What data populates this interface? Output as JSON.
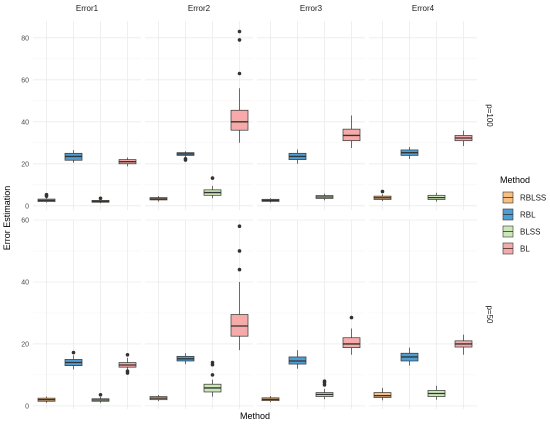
{
  "chart_data": {
    "type": "boxplot",
    "xlabel": "Method",
    "ylabel": "Error Estimation",
    "columns": [
      "Error1",
      "Error2",
      "Error3",
      "Error4"
    ],
    "rows": [
      "p=100",
      "p=50"
    ],
    "methods": [
      "RBLSS",
      "RBL",
      "BLSS",
      "BL"
    ],
    "colors": {
      "RBLSS": "#F8BF83",
      "RBL": "#4C9FD6",
      "BLSS": "#CDE8B8",
      "BL": "#F7AAAA"
    },
    "legend": {
      "title": "Method",
      "placement": "right",
      "entries": [
        "RBLSS",
        "RBL",
        "BLSS",
        "BL"
      ]
    },
    "grid": true,
    "rows_ylim": {
      "p=100": [
        -2,
        88
      ],
      "p=50": [
        -1,
        60
      ]
    },
    "rows_yticks": {
      "p=100": [
        0,
        20,
        40,
        60,
        80
      ],
      "p=50": [
        0,
        20,
        40,
        60
      ]
    },
    "panels": [
      {
        "row": "p=100",
        "col": "Error1",
        "boxes": [
          {
            "method": "RBLSS",
            "q1": 2.0,
            "median": 2.6,
            "q3": 3.2,
            "whisker_low": 1.5,
            "whisker_high": 3.8,
            "outliers": [
              4.6,
              5.3
            ]
          },
          {
            "method": "RBL",
            "q1": 21.7,
            "median": 23.5,
            "q3": 25.0,
            "whisker_low": 20.5,
            "whisker_high": 26.5,
            "outliers": []
          },
          {
            "method": "BLSS",
            "q1": 1.7,
            "median": 2.1,
            "q3": 2.6,
            "whisker_low": 1.3,
            "whisker_high": 3.0,
            "outliers": [
              3.6
            ]
          },
          {
            "method": "BL",
            "q1": 20.0,
            "median": 21.0,
            "q3": 22.0,
            "whisker_low": 18.8,
            "whisker_high": 23.0,
            "outliers": []
          }
        ]
      },
      {
        "row": "p=100",
        "col": "Error2",
        "boxes": [
          {
            "method": "RBL",
            "q1": 24.0,
            "median": 24.7,
            "q3": 25.3,
            "whisker_low": 23.0,
            "whisker_high": 26.0,
            "outliers": [
              21.8,
              22.4
            ]
          },
          {
            "method": "RBLSS",
            "q1": 2.8,
            "median": 3.3,
            "q3": 3.9,
            "whisker_low": 2.0,
            "whisker_high": 4.6,
            "outliers": []
          },
          {
            "method": "BLSS",
            "q1": 5.0,
            "median": 6.3,
            "q3": 7.6,
            "whisker_low": 3.6,
            "whisker_high": 9.5,
            "outliers": [
              13.2
            ]
          },
          {
            "method": "BL",
            "q1": 36.0,
            "median": 40.0,
            "q3": 45.5,
            "whisker_low": 30.0,
            "whisker_high": 56.0,
            "outliers": [
              63.0,
              79.0,
              83.0
            ]
          }
        ]
      },
      {
        "row": "p=100",
        "col": "Error3",
        "boxes": [
          {
            "method": "RBLSS",
            "q1": 2.1,
            "median": 2.6,
            "q3": 3.1,
            "whisker_low": 1.6,
            "whisker_high": 3.6,
            "outliers": []
          },
          {
            "method": "RBL",
            "q1": 22.0,
            "median": 23.5,
            "q3": 25.0,
            "whisker_low": 20.0,
            "whisker_high": 26.8,
            "outliers": []
          },
          {
            "method": "BLSS",
            "q1": 3.5,
            "median": 4.2,
            "q3": 4.9,
            "whisker_low": 2.6,
            "whisker_high": 5.8,
            "outliers": []
          },
          {
            "method": "BL",
            "q1": 31.0,
            "median": 33.5,
            "q3": 36.5,
            "whisker_low": 27.5,
            "whisker_high": 43.0,
            "outliers": []
          }
        ]
      },
      {
        "row": "p=100",
        "col": "Error4",
        "boxes": [
          {
            "method": "RBLSS",
            "q1": 3.0,
            "median": 3.8,
            "q3": 4.6,
            "whisker_low": 2.2,
            "whisker_high": 5.5,
            "outliers": [
              6.8
            ]
          },
          {
            "method": "RBL",
            "q1": 24.0,
            "median": 25.3,
            "q3": 26.6,
            "whisker_low": 22.3,
            "whisker_high": 28.0,
            "outliers": []
          },
          {
            "method": "BLSS",
            "q1": 3.0,
            "median": 3.9,
            "q3": 5.0,
            "whisker_low": 2.0,
            "whisker_high": 6.2,
            "outliers": []
          },
          {
            "method": "BL",
            "q1": 31.0,
            "median": 32.3,
            "q3": 33.5,
            "whisker_low": 28.5,
            "whisker_high": 35.8,
            "outliers": []
          }
        ]
      },
      {
        "row": "p=50",
        "col": "Error1",
        "boxes": [
          {
            "method": "RBLSS",
            "q1": 1.5,
            "median": 2.0,
            "q3": 2.5,
            "whisker_low": 1.0,
            "whisker_high": 3.0,
            "outliers": []
          },
          {
            "method": "RBL",
            "q1": 13.0,
            "median": 14.0,
            "q3": 15.0,
            "whisker_low": 11.8,
            "whisker_high": 16.3,
            "outliers": [
              17.2
            ]
          },
          {
            "method": "BLSS",
            "q1": 1.5,
            "median": 1.9,
            "q3": 2.3,
            "whisker_low": 1.0,
            "whisker_high": 2.9,
            "outliers": [
              3.6
            ]
          },
          {
            "method": "BL",
            "q1": 12.5,
            "median": 13.2,
            "q3": 14.0,
            "whisker_low": 11.5,
            "whisker_high": 15.5,
            "outliers": [
              10.6,
              11.2,
              16.5
            ]
          }
        ]
      },
      {
        "row": "p=50",
        "col": "Error2",
        "boxes": [
          {
            "method": "RBLSS",
            "q1": 2.0,
            "median": 2.5,
            "q3": 3.0,
            "whisker_low": 1.5,
            "whisker_high": 3.5,
            "outliers": []
          },
          {
            "method": "RBL",
            "q1": 14.5,
            "median": 15.2,
            "q3": 16.0,
            "whisker_low": 13.5,
            "whisker_high": 17.0,
            "outliers": []
          },
          {
            "method": "BLSS",
            "q1": 4.5,
            "median": 5.8,
            "q3": 7.0,
            "whisker_low": 3.0,
            "whisker_high": 8.5,
            "outliers": [
              10.0,
              13.3,
              14.0
            ]
          },
          {
            "method": "BL",
            "q1": 22.5,
            "median": 25.8,
            "q3": 29.5,
            "whisker_low": 18.0,
            "whisker_high": 40.0,
            "outliers": [
              44.0,
              50.0,
              58.0
            ]
          }
        ]
      },
      {
        "row": "p=50",
        "col": "Error3",
        "boxes": [
          {
            "method": "RBLSS",
            "q1": 1.7,
            "median": 2.1,
            "q3": 2.6,
            "whisker_low": 1.2,
            "whisker_high": 3.2,
            "outliers": []
          },
          {
            "method": "RBL",
            "q1": 13.5,
            "median": 14.5,
            "q3": 15.8,
            "whisker_low": 12.0,
            "whisker_high": 18.0,
            "outliers": []
          },
          {
            "method": "BLSS",
            "q1": 3.0,
            "median": 3.7,
            "q3": 4.3,
            "whisker_low": 2.2,
            "whisker_high": 5.5,
            "outliers": [
              6.8,
              7.5,
              8.0
            ]
          },
          {
            "method": "BL",
            "q1": 18.8,
            "median": 20.0,
            "q3": 22.0,
            "whisker_low": 16.5,
            "whisker_high": 25.0,
            "outliers": [
              28.5
            ]
          }
        ]
      },
      {
        "row": "p=50",
        "col": "Error4",
        "boxes": [
          {
            "method": "RBLSS",
            "q1": 2.7,
            "median": 3.3,
            "q3": 4.3,
            "whisker_low": 1.8,
            "whisker_high": 5.8,
            "outliers": []
          },
          {
            "method": "RBL",
            "q1": 14.5,
            "median": 15.8,
            "q3": 17.0,
            "whisker_low": 13.0,
            "whisker_high": 18.8,
            "outliers": []
          },
          {
            "method": "BLSS",
            "q1": 3.0,
            "median": 4.0,
            "q3": 5.0,
            "whisker_low": 2.0,
            "whisker_high": 6.5,
            "outliers": []
          },
          {
            "method": "BL",
            "q1": 19.0,
            "median": 20.0,
            "q3": 21.0,
            "whisker_low": 16.5,
            "whisker_high": 23.0,
            "outliers": []
          }
        ]
      }
    ]
  }
}
